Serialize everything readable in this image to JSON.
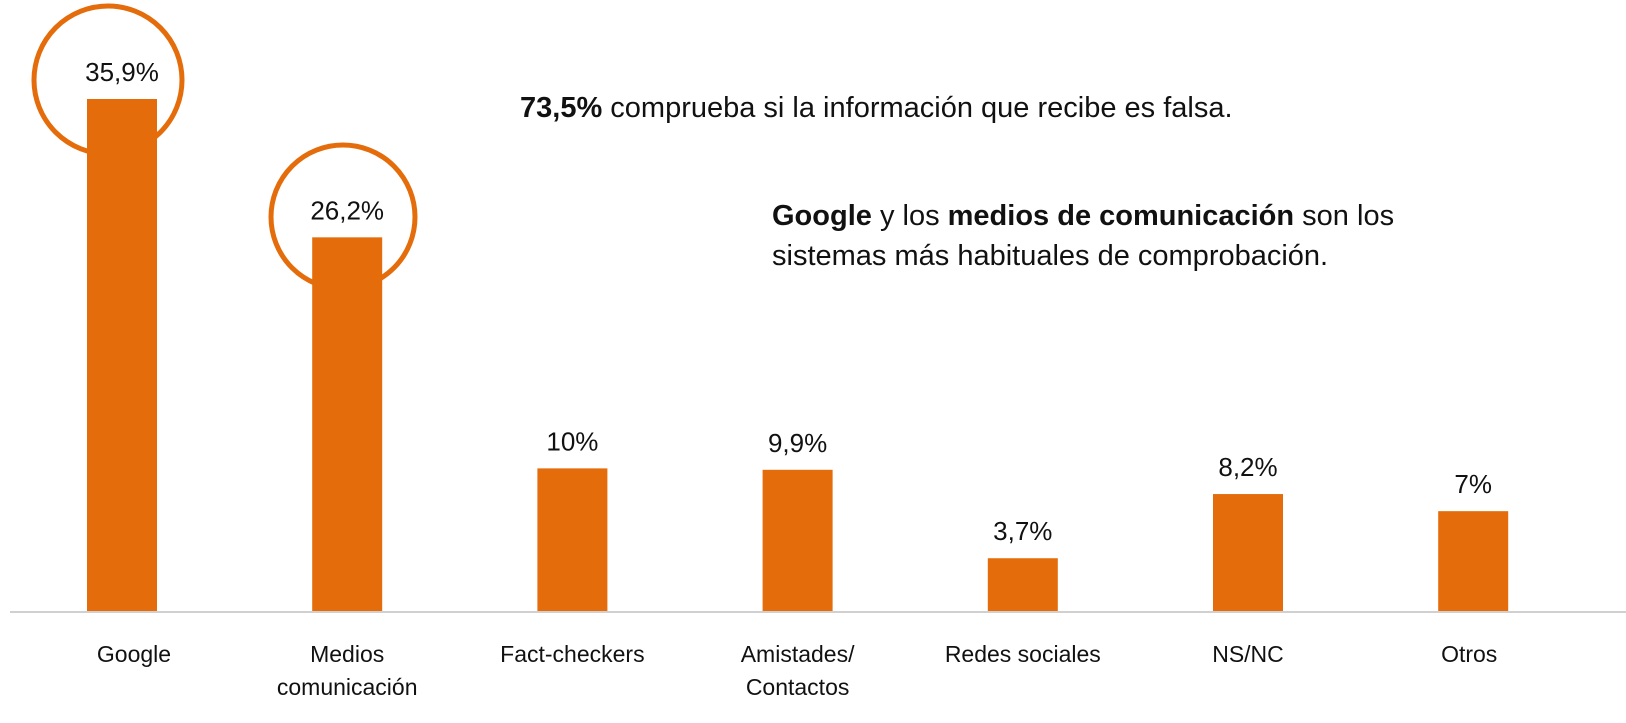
{
  "chart_data": {
    "type": "bar",
    "categories": [
      [
        "Google"
      ],
      [
        "Medios",
        "comunicación"
      ],
      [
        "Fact-checkers"
      ],
      [
        "Amistades/",
        "Contactos"
      ],
      [
        "Redes sociales"
      ],
      [
        "NS/NC"
      ],
      [
        "Otros"
      ]
    ],
    "values": [
      35.9,
      26.2,
      10,
      9.9,
      3.7,
      8.2,
      7
    ],
    "value_labels": [
      "35,9%",
      "26,2%",
      "10%",
      "9,9%",
      "3,7%",
      "8,2%",
      "7%"
    ],
    "color": "#e46c0a",
    "annotations": [
      [
        {
          "text": "73,5%",
          "bold": true
        },
        {
          "text": " comprueba si la información que recibe es falsa.",
          "bold": false
        }
      ],
      [
        {
          "text": "Google",
          "bold": true
        },
        {
          "text": " y los ",
          "bold": false
        },
        {
          "text": "medios de comunicación",
          "bold": true
        },
        {
          "text": " son los sistemas más habituales de comprobación.",
          "bold": false
        }
      ]
    ]
  }
}
